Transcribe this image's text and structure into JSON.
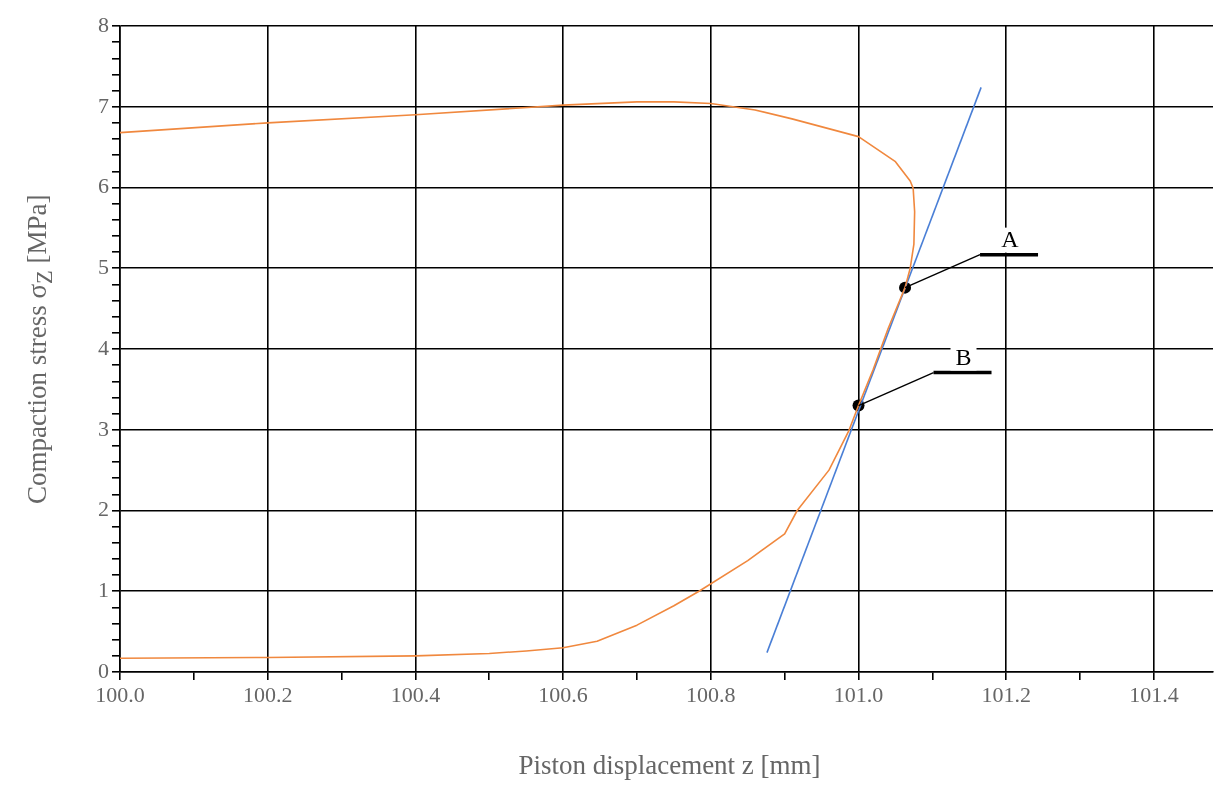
{
  "chart_data": {
    "type": "line",
    "xlabel": "Piston displacement z [mm]",
    "ylabel": "Compaction stress σ$_{Z}$ [MPa]",
    "xlim": [
      100.0,
      101.48
    ],
    "ylim": [
      0,
      8
    ],
    "xticks": [
      {
        "value": 100.0,
        "label": "100.0"
      },
      {
        "value": 100.1,
        "label": null
      },
      {
        "value": 100.2,
        "label": "100.2"
      },
      {
        "value": 100.3,
        "label": null
      },
      {
        "value": 100.4,
        "label": "100.4"
      },
      {
        "value": 100.5,
        "label": null
      },
      {
        "value": 100.6,
        "label": "100.6"
      },
      {
        "value": 100.7,
        "label": null
      },
      {
        "value": 100.8,
        "label": "100.8"
      },
      {
        "value": 100.9,
        "label": null
      },
      {
        "value": 101.0,
        "label": "101.0"
      },
      {
        "value": 101.1,
        "label": null
      },
      {
        "value": 101.2,
        "label": "101.2"
      },
      {
        "value": 101.3,
        "label": null
      },
      {
        "value": 101.4,
        "label": "101.4"
      }
    ],
    "yticks": [
      0,
      {
        "value": 0.2,
        "label": null
      },
      {
        "value": 0.4,
        "label": null
      },
      {
        "value": 0.6,
        "label": null
      },
      {
        "value": 0.8,
        "label": null
      },
      1,
      {
        "value": 1.2,
        "label": null
      },
      {
        "value": 1.4,
        "label": null
      },
      {
        "value": 1.6,
        "label": null
      },
      {
        "value": 1.8,
        "label": null
      },
      2,
      {
        "value": 2.2,
        "label": null
      },
      {
        "value": 2.4,
        "label": null
      },
      {
        "value": 2.6,
        "label": null
      },
      {
        "value": 2.8,
        "label": null
      },
      3,
      {
        "value": 3.2,
        "label": null
      },
      {
        "value": 3.4,
        "label": null
      },
      {
        "value": 3.6,
        "label": null
      },
      {
        "value": 3.8,
        "label": null
      },
      4,
      {
        "value": 4.2,
        "label": null
      },
      {
        "value": 4.4,
        "label": null
      },
      {
        "value": 4.6,
        "label": null
      },
      {
        "value": 4.8,
        "label": null
      },
      5,
      {
        "value": 5.2,
        "label": null
      },
      {
        "value": 5.4,
        "label": null
      },
      {
        "value": 5.6,
        "label": null
      },
      {
        "value": 5.8,
        "label": null
      },
      6,
      {
        "value": 6.2,
        "label": null
      },
      {
        "value": 6.4,
        "label": null
      },
      {
        "value": 6.6,
        "label": null
      },
      {
        "value": 6.8,
        "label": null
      },
      7,
      {
        "value": 7.2,
        "label": null
      },
      {
        "value": 7.4,
        "label": null
      },
      {
        "value": 7.6,
        "label": null
      },
      {
        "value": 7.8,
        "label": null
      },
      8
    ],
    "grid": true,
    "legend": false,
    "series": [
      {
        "color": "#f0883e",
        "marker": "none",
        "x": [
          100.0,
          100.2,
          100.4,
          100.5,
          100.55,
          100.6,
          100.646,
          100.7,
          100.75,
          100.784,
          100.85,
          100.9,
          100.917,
          100.96,
          100.987,
          101.0,
          101.02,
          101.04,
          101.063,
          101.07,
          101.075,
          101.076,
          101.074,
          101.07,
          101.05,
          101.0,
          100.91,
          100.86,
          100.8,
          100.75,
          100.7,
          100.6,
          100.4,
          100.2,
          100.0
        ],
        "values": [
          0.17,
          0.18,
          0.2,
          0.23,
          0.26,
          0.3,
          0.38,
          0.58,
          0.82,
          1.0,
          1.38,
          1.71,
          2.0,
          2.5,
          2.99,
          3.3,
          3.75,
          4.25,
          4.76,
          5.0,
          5.3,
          5.7,
          5.99,
          6.08,
          6.32,
          6.63,
          6.85,
          6.96,
          7.04,
          7.06,
          7.06,
          7.02,
          6.9,
          6.8,
          6.68
        ]
      },
      {
        "color": "#4a7fd6",
        "marker": "none",
        "x": [
          100.876,
          101.166
        ],
        "values": [
          0.24,
          7.24
        ]
      },
      {
        "type": "scatter",
        "color": "#000000",
        "marker": "circle",
        "x": [
          101.063,
          101.0
        ],
        "values": [
          4.76,
          3.3
        ]
      }
    ],
    "annotations": [
      {
        "text": "A",
        "x": 101.063,
        "y": 4.76
      },
      {
        "text": "B",
        "x": 101.0,
        "y": 3.3
      }
    ]
  }
}
